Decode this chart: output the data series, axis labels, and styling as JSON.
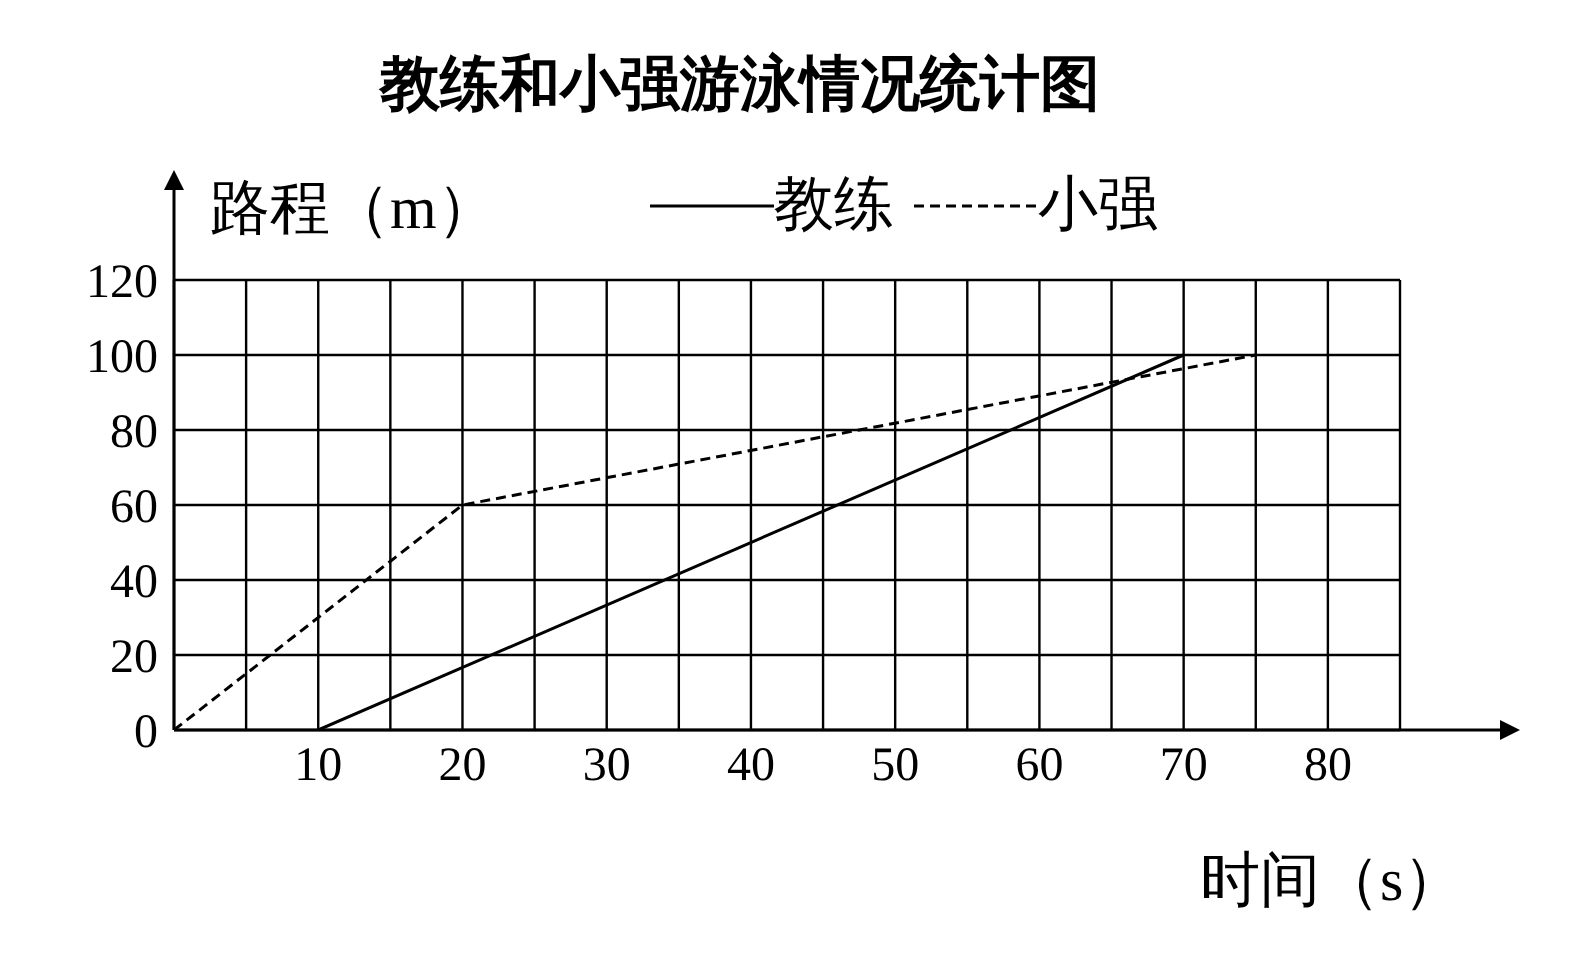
{
  "chart_data": {
    "type": "line",
    "title": "教练和小强游泳情况统计图",
    "xlabel": "时间（s）",
    "ylabel": "路程（m）",
    "xlim": [
      0,
      85
    ],
    "xticks": [
      {
        "value": 0,
        "label": null
      },
      {
        "value": 5,
        "label": null
      },
      10,
      {
        "value": 15,
        "label": null
      },
      20,
      {
        "value": 25,
        "label": null
      },
      30,
      {
        "value": 35,
        "label": null
      },
      40,
      {
        "value": 45,
        "label": null
      },
      50,
      {
        "value": 55,
        "label": null
      },
      60,
      {
        "value": 65,
        "label": null
      },
      70,
      {
        "value": 75,
        "label": null
      },
      80,
      {
        "value": 85,
        "label": null
      }
    ],
    "ylim": [
      0,
      120
    ],
    "yticks": [
      0,
      20,
      40,
      60,
      80,
      100,
      120
    ],
    "grid": true,
    "legend": "top right",
    "marker": "none",
    "series": [
      {
        "name": "教练",
        "color": "#000000",
        "line_style": "solid",
        "x": [
          10,
          70
        ],
        "values": [
          0,
          100
        ]
      },
      {
        "name": "小强",
        "color": "#000000",
        "line_style": "dashed",
        "x": [
          0,
          20,
          75
        ],
        "values": [
          0,
          60,
          100
        ]
      }
    ]
  }
}
